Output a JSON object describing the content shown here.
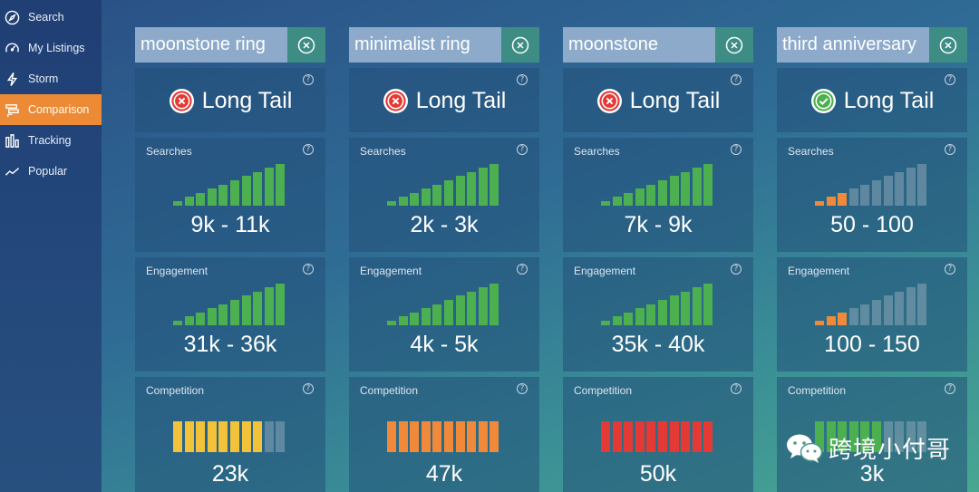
{
  "sidebar": {
    "items": [
      {
        "label": "Search",
        "icon": "compass-icon"
      },
      {
        "label": "My Listings",
        "icon": "speedometer-icon"
      },
      {
        "label": "Storm",
        "icon": "lightning-icon"
      },
      {
        "label": "Comparison",
        "icon": "comparison-icon",
        "active": true
      },
      {
        "label": "Tracking",
        "icon": "bar-chart-icon"
      },
      {
        "label": "Popular",
        "icon": "trend-line-icon"
      }
    ]
  },
  "colors": {
    "accent": "#ec8a35",
    "green": "#4caf50",
    "orange": "#f08a3a",
    "yellow": "#f2c23a",
    "red": "#e53935",
    "inactive": "#8aa5b6"
  },
  "labels": {
    "long_tail": "Long Tail",
    "searches": "Searches",
    "engagement": "Engagement",
    "competition": "Competition",
    "help": "?"
  },
  "columns": [
    {
      "keyword": "moonstone ring",
      "long_tail": false,
      "searches": {
        "value": "9k - 11k",
        "level": 10,
        "color": "green"
      },
      "engagement": {
        "value": "31k - 36k",
        "level": 10,
        "color": "green"
      },
      "competition": {
        "value": "23k",
        "level": 8,
        "color": "yellow"
      }
    },
    {
      "keyword": "minimalist ring",
      "long_tail": false,
      "searches": {
        "value": "2k - 3k",
        "level": 10,
        "color": "green"
      },
      "engagement": {
        "value": "4k - 5k",
        "level": 10,
        "color": "green"
      },
      "competition": {
        "value": "47k",
        "level": 10,
        "color": "orange"
      }
    },
    {
      "keyword": "moonstone",
      "long_tail": false,
      "searches": {
        "value": "7k - 9k",
        "level": 10,
        "color": "green"
      },
      "engagement": {
        "value": "35k - 40k",
        "level": 10,
        "color": "green"
      },
      "competition": {
        "value": "50k",
        "level": 10,
        "color": "red"
      }
    },
    {
      "keyword": "third anniversary",
      "long_tail": true,
      "searches": {
        "value": "50 - 100",
        "level": 3,
        "color": "orange"
      },
      "engagement": {
        "value": "100 - 150",
        "level": 3,
        "color": "orange"
      },
      "competition": {
        "value": "3k",
        "level": 6,
        "color": "green"
      }
    }
  ],
  "watermark": {
    "text": "跨境小付哥"
  }
}
